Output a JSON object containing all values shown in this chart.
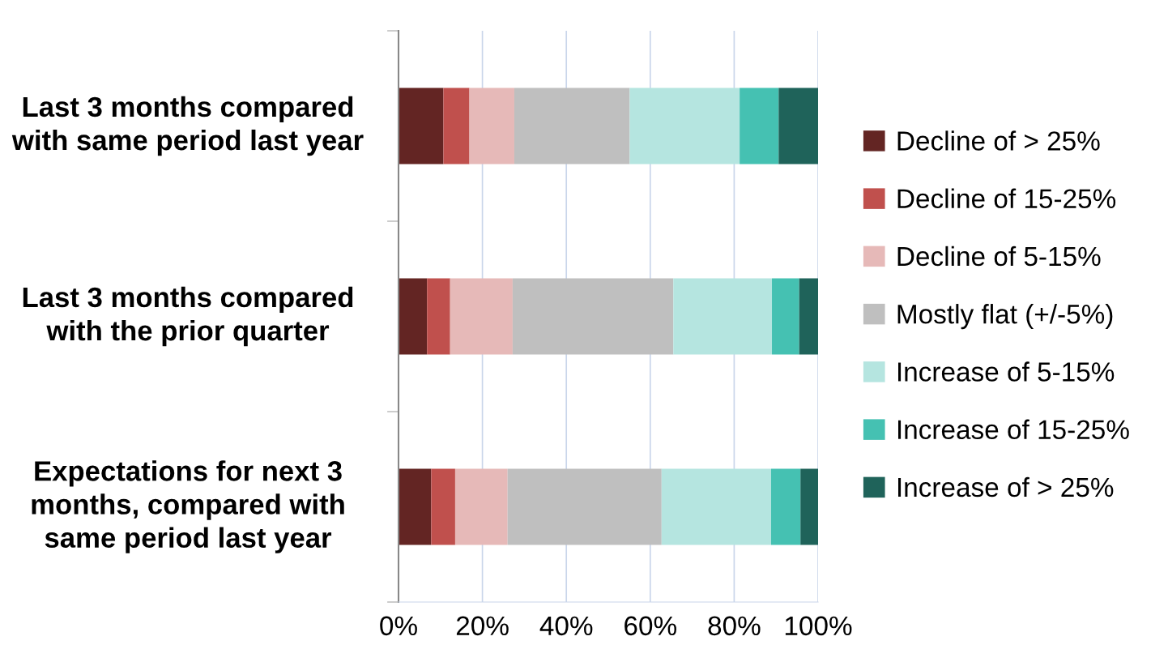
{
  "chart_data": {
    "type": "bar",
    "orientation": "horizontal",
    "stacked": true,
    "categories": [
      "Last 3 months compared with same period last year",
      "Last 3 months compared with the prior quarter",
      "Expectations for next 3 months, compared with same period last year"
    ],
    "series": [
      {
        "name": "Decline of > 25%",
        "color": "#632523",
        "values": [
          10.7,
          6.8,
          7.8
        ]
      },
      {
        "name": "Decline of 15-25%",
        "color": "#c0504d",
        "values": [
          6.2,
          5.5,
          5.7
        ]
      },
      {
        "name": "Decline of 5-15%",
        "color": "#e6b9b8",
        "values": [
          10.7,
          14.9,
          12.5
        ]
      },
      {
        "name": "Mostly flat (+/-5%)",
        "color": "#bfbfbf",
        "values": [
          27.5,
          38.3,
          36.7
        ]
      },
      {
        "name": "Increase of 5-15%",
        "color": "#b5e5e0",
        "values": [
          26.2,
          23.5,
          26.1
        ]
      },
      {
        "name": "Increase of 15-25%",
        "color": "#45c1b2",
        "values": [
          9.3,
          6.5,
          7.0
        ]
      },
      {
        "name": "Increase of > 25%",
        "color": "#1f635a",
        "values": [
          9.4,
          4.5,
          4.2
        ]
      }
    ],
    "xlim": [
      0,
      100
    ],
    "xticks": [
      {
        "value": 0,
        "label": "0%"
      },
      {
        "value": 20,
        "label": "20%"
      },
      {
        "value": 40,
        "label": "40%"
      },
      {
        "value": 60,
        "label": "60%"
      },
      {
        "value": 80,
        "label": "80%"
      },
      {
        "value": 100,
        "label": "100%"
      }
    ],
    "grid": "x",
    "legend": "right"
  }
}
